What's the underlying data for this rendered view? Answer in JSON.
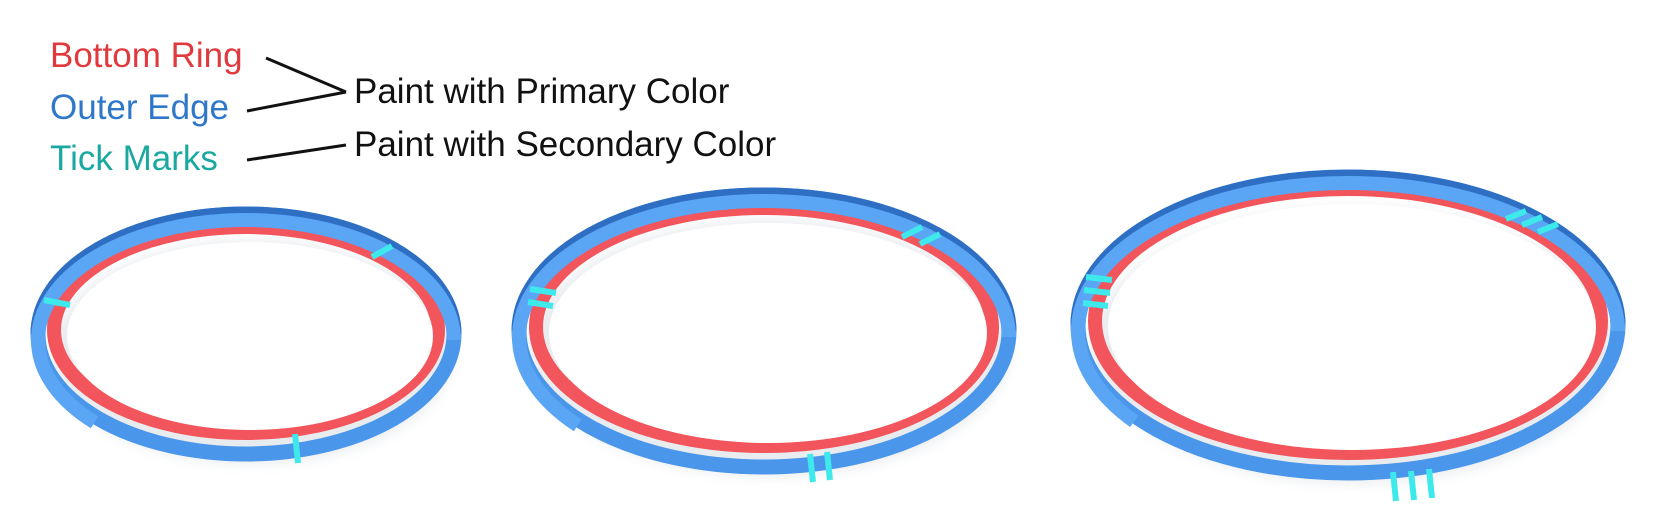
{
  "legend": {
    "bottom_ring": {
      "label": "Bottom Ring",
      "color": "#e0393e"
    },
    "outer_edge": {
      "label": "Outer Edge",
      "color": "#2f78c9"
    },
    "tick_marks": {
      "label": "Tick Marks",
      "color": "#1aa9a0"
    }
  },
  "callouts": {
    "primary": "Paint with Primary Color",
    "secondary": "Paint with Secondary Color"
  },
  "colors": {
    "ring_red": "#f2555b",
    "edge_blue": "#4a96ea",
    "edge_blue_dark": "#2e6fc4",
    "tick_cyan": "#3ee9ec"
  },
  "rings": [
    {
      "name": "ring-one-tick",
      "tick_count": 1
    },
    {
      "name": "ring-two-ticks",
      "tick_count": 2
    },
    {
      "name": "ring-three-ticks",
      "tick_count": 3
    }
  ]
}
